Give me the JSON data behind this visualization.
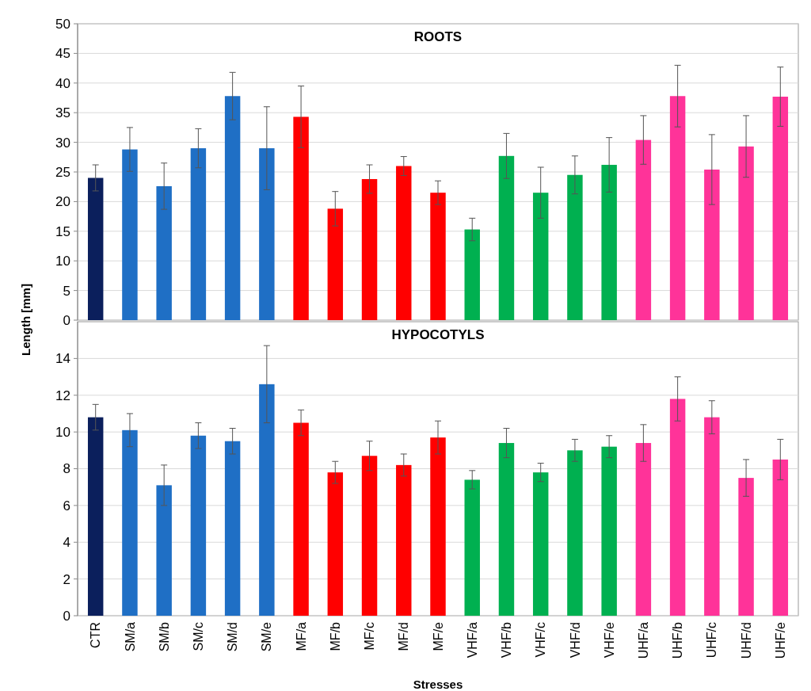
{
  "chart_data": [
    {
      "type": "bar",
      "title": "ROOTS",
      "ylabel": "Length [mm]",
      "categories": [
        null,
        null,
        null,
        null,
        null,
        null,
        null,
        null,
        null,
        null,
        null,
        null,
        null,
        null,
        null,
        null,
        null,
        null,
        null,
        null,
        null
      ],
      "values": [
        24,
        28.8,
        22.6,
        29,
        37.8,
        29,
        34.3,
        18.8,
        23.8,
        26,
        21.5,
        15.3,
        27.7,
        21.5,
        24.5,
        26.2,
        30.4,
        37.8,
        25.4,
        29.3,
        37.7
      ],
      "errors": [
        2.2,
        3.7,
        3.9,
        3.3,
        4,
        7,
        5.2,
        2.9,
        2.4,
        1.6,
        2,
        1.9,
        3.8,
        4.3,
        3.2,
        4.6,
        4.1,
        5.2,
        5.9,
        5.2,
        5
      ],
      "colors": [
        "#0b1f5c",
        "#1f6fc5",
        "#1f6fc5",
        "#1f6fc5",
        "#1f6fc5",
        "#1f6fc5",
        "#ff0000",
        "#ff0000",
        "#ff0000",
        "#ff0000",
        "#ff0000",
        "#00b050",
        "#00b050",
        "#00b050",
        "#00b050",
        "#00b050",
        "#ff3399",
        "#ff3399",
        "#ff3399",
        "#ff3399",
        "#ff3399"
      ],
      "ylim": [
        0,
        50
      ],
      "yticks": [
        0,
        5,
        10,
        15,
        20,
        25,
        30,
        35,
        40,
        45,
        50
      ],
      "grid": "y"
    },
    {
      "type": "bar",
      "title": "HYPOCOTYLS",
      "xlabel": "Stresses",
      "categories": [
        "CTR",
        "SM/a",
        "SM/b",
        "SM/c",
        "SM/d",
        "SM/e",
        "MF/a",
        "MF/b",
        "MF/c",
        "MF/d",
        "MF/e",
        "VHF/a",
        "VHF/b",
        "VHF/c",
        "VHF/d",
        "VHF/e",
        "UHF/a",
        "UHF/b",
        "UHF/c",
        "UHF/d",
        "UHF/e"
      ],
      "values": [
        10.8,
        10.1,
        7.1,
        9.8,
        9.5,
        12.6,
        10.5,
        7.8,
        8.7,
        8.2,
        9.7,
        7.4,
        9.4,
        7.8,
        9,
        9.2,
        9.4,
        11.8,
        10.8,
        7.5,
        8.5
      ],
      "errors": [
        0.7,
        0.9,
        1.1,
        0.7,
        0.7,
        2.1,
        0.7,
        0.6,
        0.8,
        0.6,
        0.9,
        0.5,
        0.8,
        0.5,
        0.6,
        0.6,
        1,
        1.2,
        0.9,
        1,
        1.1
      ],
      "colors": [
        "#0b1f5c",
        "#1f6fc5",
        "#1f6fc5",
        "#1f6fc5",
        "#1f6fc5",
        "#1f6fc5",
        "#ff0000",
        "#ff0000",
        "#ff0000",
        "#ff0000",
        "#ff0000",
        "#00b050",
        "#00b050",
        "#00b050",
        "#00b050",
        "#00b050",
        "#ff3399",
        "#ff3399",
        "#ff3399",
        "#ff3399",
        "#ff3399"
      ],
      "ylim": [
        0,
        16
      ],
      "yticks": [
        0,
        2,
        4,
        6,
        8,
        10,
        12,
        14
      ],
      "grid": "y"
    }
  ]
}
